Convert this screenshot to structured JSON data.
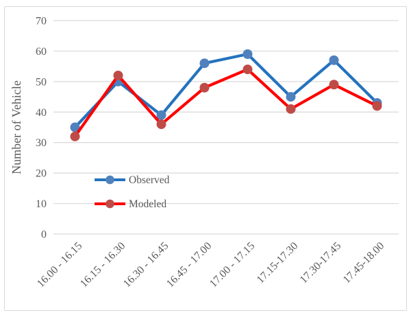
{
  "chart_data": {
    "type": "line",
    "title": "",
    "xlabel": "",
    "ylabel": "Number of Vehicle",
    "ylim": [
      0,
      70
    ],
    "yticks": [
      0,
      10,
      20,
      30,
      40,
      50,
      60,
      70
    ],
    "categories": [
      "16.00 - 16.15",
      "16.15 - 16.30",
      "16.30 - 16.45",
      "16.45 - 17.00",
      "17.00 - 17.15",
      "17.15-17.30",
      "17.30-17.45",
      "17.45-18.00"
    ],
    "series": [
      {
        "name": "Observed",
        "values": [
          35,
          50,
          39,
          56,
          59,
          45,
          57,
          43
        ],
        "line_color": "#2473BE",
        "marker_color": "#4F81BD"
      },
      {
        "name": "Modeled",
        "values": [
          32,
          52,
          36,
          48,
          54,
          41,
          49,
          42
        ],
        "line_color": "#FF0000",
        "marker_color": "#BF4B47"
      }
    ],
    "legend": {
      "entries": [
        "Observed",
        "Modeled"
      ],
      "position": "inside-left-middle"
    },
    "grid": true,
    "gridline_color": "#D9D9D9",
    "text_color": "#595959",
    "border_color": "#D9D9D9",
    "background": "#FFFFFF"
  }
}
